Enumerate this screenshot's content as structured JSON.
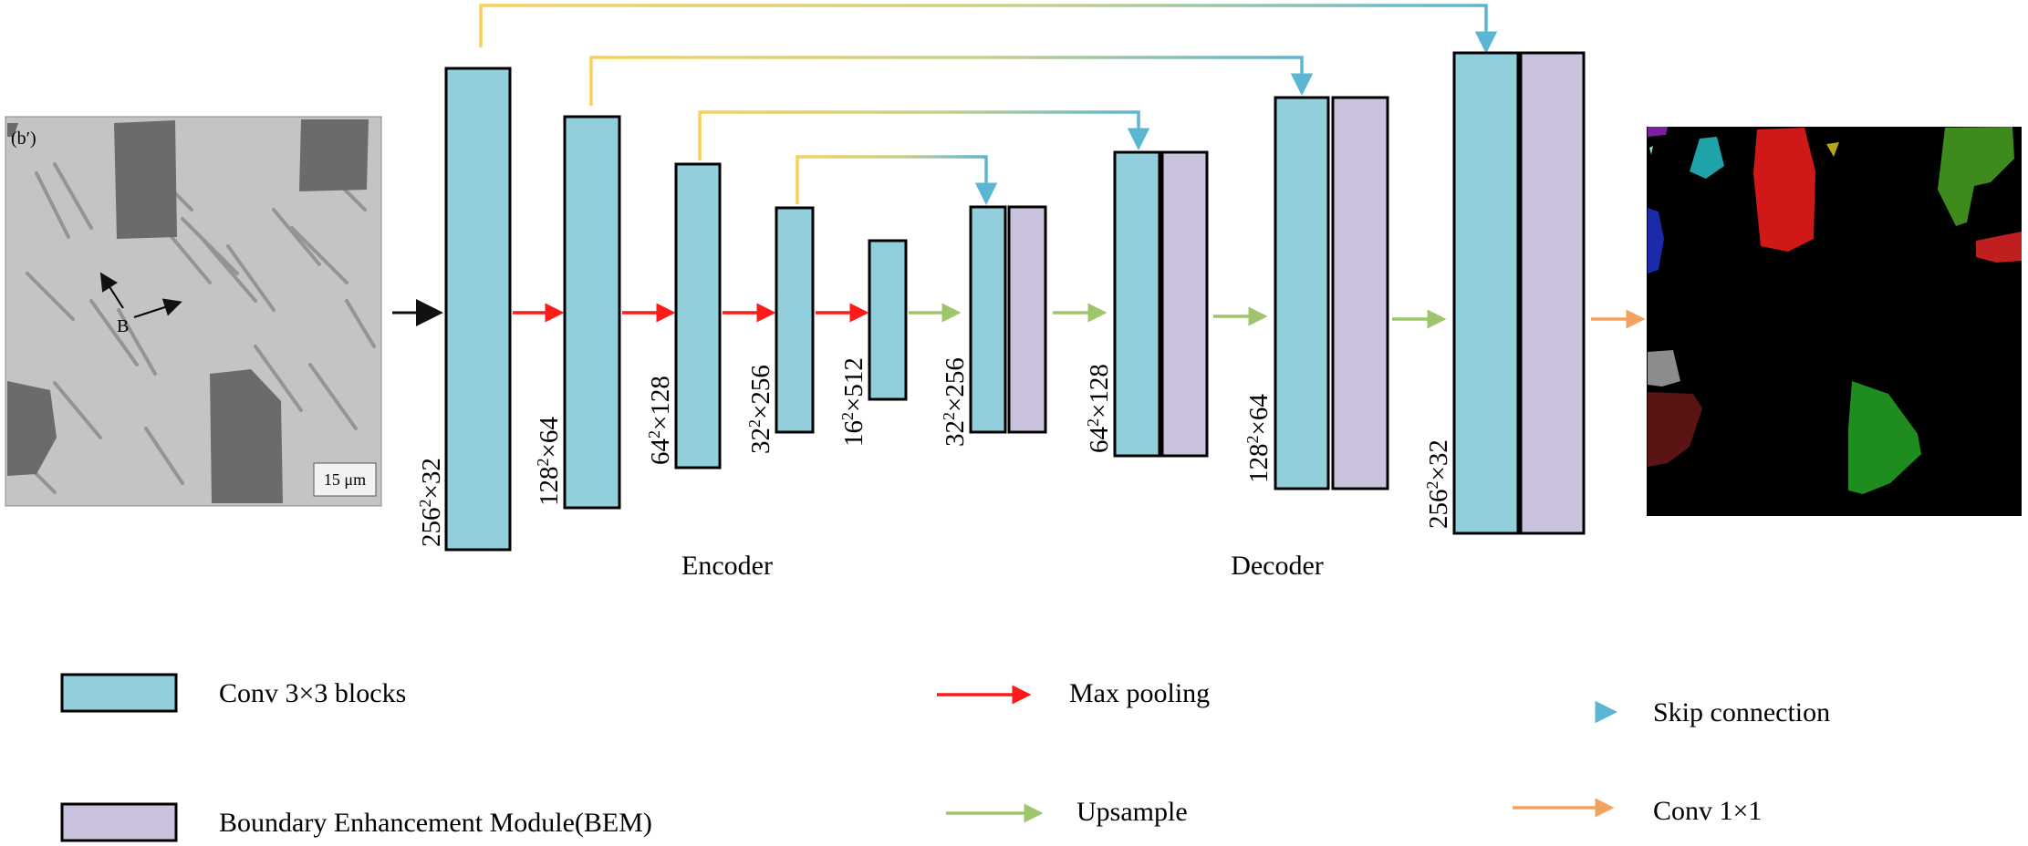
{
  "input_image": {
    "panel_label": "(b′)",
    "annotation": "B",
    "scale_bar": "15 μm"
  },
  "encoder": {
    "title": "Encoder",
    "dims": [
      {
        "base": "256",
        "exp": "2",
        "rest": "×32"
      },
      {
        "base": "128",
        "exp": "2",
        "rest": "×64"
      },
      {
        "base": "64",
        "exp": "2",
        "rest": "×128"
      },
      {
        "base": "32",
        "exp": "2",
        "rest": "×256"
      },
      {
        "base": "16",
        "exp": "2",
        "rest": "×512"
      }
    ]
  },
  "decoder": {
    "title": "Decoder",
    "dims": [
      {
        "base": "32",
        "exp": "2",
        "rest": "×256"
      },
      {
        "base": "64",
        "exp": "2",
        "rest": "×128"
      },
      {
        "base": "128",
        "exp": "2",
        "rest": "×64"
      },
      {
        "base": "256",
        "exp": "2",
        "rest": "×32"
      }
    ]
  },
  "legend": {
    "conv_blocks": "Conv 3×3 blocks",
    "bem": "Boundary Enhancement Module(BEM)",
    "max_pooling": "Max pooling",
    "upsample": "Upsample",
    "skip_connection": "Skip connection",
    "conv1x1": "Conv 1×1"
  },
  "colors": {
    "conv": "#92cfdc",
    "bem": "#cbc3dd",
    "maxpool": "#ff1a1a",
    "upsample": "#9dc56b",
    "skip_start": "#f7d25c",
    "skip_end": "#5ab6d2",
    "conv1x1": "#f2a25e"
  }
}
